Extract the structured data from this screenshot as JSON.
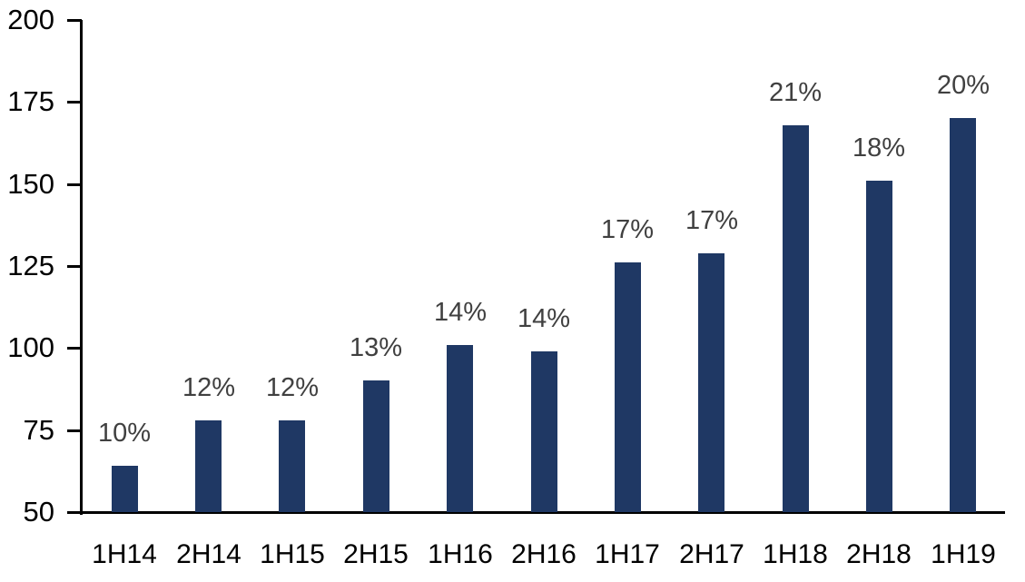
{
  "chart_data": {
    "type": "bar",
    "title": "",
    "xlabel": "",
    "ylabel": "",
    "categories": [
      "1H14",
      "2H14",
      "1H15",
      "2H15",
      "1H16",
      "2H16",
      "1H17",
      "2H17",
      "1H18",
      "2H18",
      "1H19"
    ],
    "values": [
      64,
      78,
      78,
      90,
      101,
      99,
      126,
      129,
      168,
      151,
      170
    ],
    "bar_labels": [
      "10%",
      "12%",
      "12%",
      "13%",
      "14%",
      "14%",
      "17%",
      "17%",
      "21%",
      "18%",
      "20%"
    ],
    "ylim": [
      50,
      200
    ],
    "yticks": [
      50,
      75,
      100,
      125,
      150,
      175,
      200
    ],
    "grid": false,
    "legend": false,
    "colors": {
      "bar": "#1F3864",
      "data_label": "#404040",
      "axis": "#000000",
      "tick_label": "#000000",
      "background": "#FFFFFF"
    }
  }
}
